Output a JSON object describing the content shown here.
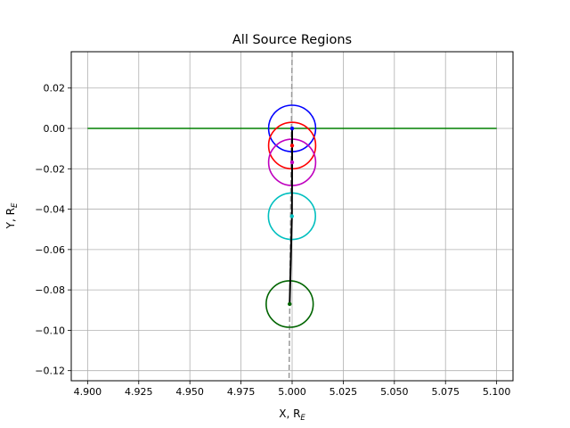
{
  "chart_data": {
    "type": "line",
    "title": "All Source Regions",
    "xlabel": "X, R",
    "xlabel_sub": "E",
    "ylabel": "Y, R",
    "ylabel_sub": "E",
    "xlim": [
      4.892,
      5.108
    ],
    "ylim": [
      -0.125,
      0.038
    ],
    "xticks": [
      4.9,
      4.925,
      4.95,
      4.975,
      5.0,
      5.025,
      5.05,
      5.075,
      5.1
    ],
    "xtick_labels": [
      "4.900",
      "4.925",
      "4.950",
      "4.975",
      "5.000",
      "5.025",
      "5.050",
      "5.075",
      "5.100"
    ],
    "yticks": [
      0.02,
      0.0,
      -0.02,
      -0.04,
      -0.06,
      -0.08,
      -0.1,
      -0.12
    ],
    "ytick_labels": [
      "0.02",
      "0.00",
      "−0.02",
      "−0.04",
      "−0.06",
      "−0.08",
      "−0.10",
      "−0.12"
    ],
    "grid": true,
    "horizontal_line": {
      "x": [
        4.9,
        5.1
      ],
      "y": 0.0,
      "color": "#008000"
    },
    "dashed_line": {
      "x": [
        5.0,
        4.9985
      ],
      "y": [
        0.038,
        -0.125
      ],
      "color": "#999999"
    },
    "path": {
      "color": "#000000",
      "points": [
        {
          "x": 5.0,
          "y": 0.0
        },
        {
          "x": 5.0,
          "y": -0.0085
        },
        {
          "x": 5.0,
          "y": -0.0168
        },
        {
          "x": 4.9999,
          "y": -0.0435
        },
        {
          "x": 4.9988,
          "y": -0.087
        }
      ]
    },
    "circles": [
      {
        "cx": 5.0,
        "cy": 0.0,
        "r": 0.0115,
        "color": "#0000ff",
        "center_color": "#0000ff"
      },
      {
        "cx": 5.0,
        "cy": -0.0085,
        "r": 0.0115,
        "color": "#ff0000",
        "center_color": "#ff0000"
      },
      {
        "cx": 5.0,
        "cy": -0.0168,
        "r": 0.0115,
        "color": "#bf00bf",
        "center_color": "#bf00bf"
      },
      {
        "cx": 4.9999,
        "cy": -0.0435,
        "r": 0.0115,
        "color": "#00bfbf",
        "center_color": "#00bfbf"
      },
      {
        "cx": 4.9988,
        "cy": -0.087,
        "r": 0.0115,
        "color": "#006400",
        "center_color": "#006400"
      }
    ]
  }
}
